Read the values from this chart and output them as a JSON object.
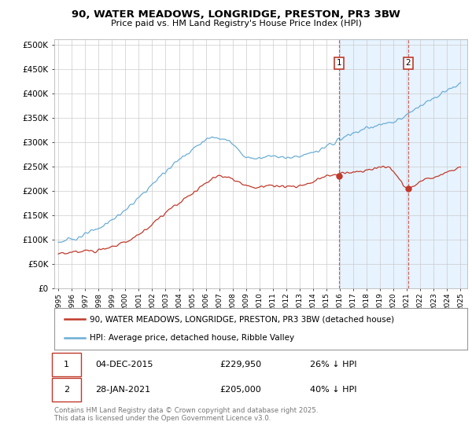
{
  "title": "90, WATER MEADOWS, LONGRIDGE, PRESTON, PR3 3BW",
  "subtitle": "Price paid vs. HM Land Registry's House Price Index (HPI)",
  "hpi_color": "#6baed6",
  "price_color": "#c0392b",
  "vline_color": "#c0392b",
  "shade_color": "#ddeeff",
  "background_color": "#ffffff",
  "grid_color": "#cccccc",
  "ylabel_ticks": [
    "£0",
    "£50K",
    "£100K",
    "£150K",
    "£200K",
    "£250K",
    "£300K",
    "£350K",
    "£400K",
    "£450K",
    "£500K"
  ],
  "ytick_values": [
    0,
    50000,
    100000,
    150000,
    200000,
    250000,
    300000,
    350000,
    400000,
    450000,
    500000
  ],
  "ylim": [
    0,
    510000
  ],
  "xlim_start": 1994.7,
  "xlim_end": 2025.5,
  "xtick_years": [
    1995,
    1996,
    1997,
    1998,
    1999,
    2000,
    2001,
    2002,
    2003,
    2004,
    2005,
    2006,
    2007,
    2008,
    2009,
    2010,
    2011,
    2012,
    2013,
    2014,
    2015,
    2016,
    2017,
    2018,
    2019,
    2020,
    2021,
    2022,
    2023,
    2024,
    2025
  ],
  "sale1_x": 2015.92,
  "sale1_y": 229950,
  "sale1_label": "1",
  "sale2_x": 2021.08,
  "sale2_y": 205000,
  "sale2_label": "2",
  "legend_line1": "90, WATER MEADOWS, LONGRIDGE, PRESTON, PR3 3BW (detached house)",
  "legend_line2": "HPI: Average price, detached house, Ribble Valley",
  "table_row1": [
    "1",
    "04-DEC-2015",
    "£229,950",
    "26% ↓ HPI"
  ],
  "table_row2": [
    "2",
    "28-JAN-2021",
    "£205,000",
    "40% ↓ HPI"
  ],
  "footnote": "Contains HM Land Registry data © Crown copyright and database right 2025.\nThis data is licensed under the Open Government Licence v3.0.",
  "shade_x_start": 2015.92,
  "shade_x_end": 2025.5
}
